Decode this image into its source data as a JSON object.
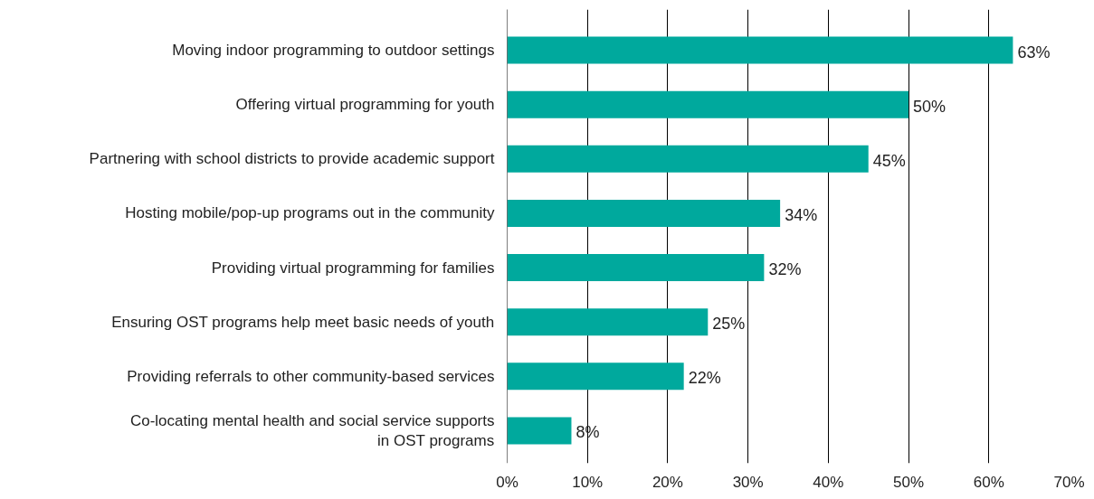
{
  "chart_data": {
    "type": "bar",
    "orientation": "horizontal",
    "categories": [
      "Moving indoor programming to outdoor settings",
      "Offering virtual programming for youth",
      "Partnering with school districts to provide academic support",
      "Hosting mobile/pop-up programs out in the community",
      "Providing virtual programming for families",
      "Ensuring OST programs help meet basic needs of youth",
      "Providing referrals to other community-based services",
      "Co-locating mental health and social service supports\nin OST programs"
    ],
    "values": [
      63,
      50,
      45,
      34,
      32,
      25,
      22,
      8
    ],
    "value_labels": [
      "63%",
      "50%",
      "45%",
      "34%",
      "32%",
      "25%",
      "22%",
      "8%"
    ],
    "color": "#00a99d",
    "xlim": [
      0,
      70
    ],
    "xticks": [
      {
        "value": 0,
        "label": "0%"
      },
      {
        "value": 10,
        "label": "10%"
      },
      {
        "value": 20,
        "label": "20%"
      },
      {
        "value": 30,
        "label": "30%"
      },
      {
        "value": 40,
        "label": "40%"
      },
      {
        "value": 50,
        "label": "50%"
      },
      {
        "value": 60,
        "label": "60%"
      },
      {
        "value": 70,
        "label": "70%"
      }
    ],
    "grid": "x"
  }
}
